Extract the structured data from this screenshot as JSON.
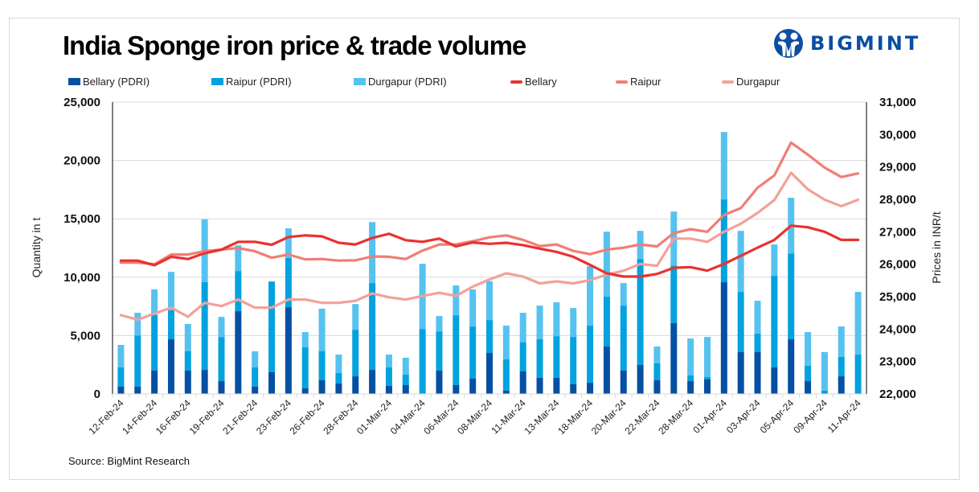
{
  "header": {
    "title": "India Sponge iron price & trade volume",
    "logo_text": "BIGMINT",
    "brand_color": "#0B4EA2"
  },
  "footer": {
    "source": "Source: BigMint Research"
  },
  "chart_data": {
    "type": "bar+line",
    "title": "India Sponge iron price & trade volume",
    "xlabel": "",
    "ylabel": "Quantity in t",
    "y2label": "Prices in INR/t",
    "ylim": [
      0,
      25000
    ],
    "y2lim": [
      22000,
      31000
    ],
    "yticks": [
      "0",
      "5,000",
      "10,000",
      "15,000",
      "20,000",
      "25,000"
    ],
    "y2ticks": [
      "22,000",
      "23,000",
      "24,000",
      "25,000",
      "26,000",
      "27,000",
      "28,000",
      "29,000",
      "30,000",
      "31,000"
    ],
    "grid": true,
    "legend_position": "top",
    "categories": [
      "12-Feb-24",
      "",
      "14-Feb-24",
      "",
      "16-Feb-24",
      "",
      "19-Feb-24",
      "",
      "21-Feb-24",
      "",
      "23-Feb-24",
      "",
      "26-Feb-24",
      "",
      "28-Feb-24",
      "",
      "01-Mar-24",
      "",
      "04-Mar-24",
      "",
      "06-Mar-24",
      "",
      "08-Mar-24",
      "",
      "11-Mar-24",
      "",
      "13-Mar-24",
      "",
      "18-Mar-24",
      "",
      "20-Mar-24",
      "",
      "22-Mar-24",
      "",
      "28-Mar-24",
      "",
      "01-Apr-24",
      "",
      "03-Apr-24",
      "",
      "05-Apr-24",
      "",
      "09-Apr-24",
      "",
      "11-Apr-24"
    ],
    "bar_series": [
      {
        "name": "Bellary (PDRI)",
        "color": "#0650A3",
        "stack": "volume",
        "values": [
          640,
          640,
          2000,
          4680,
          2000,
          2060,
          1100,
          7090,
          640,
          1860,
          7430,
          480,
          1170,
          890,
          1510,
          2060,
          690,
          760,
          0,
          2000,
          760,
          1310,
          3510,
          280,
          1930,
          1380,
          1380,
          830,
          960,
          4060,
          2000,
          2480,
          1170,
          6060,
          1100,
          1240,
          9570,
          3580,
          3580,
          2270,
          4680,
          1100,
          0,
          1510,
          0
        ]
      },
      {
        "name": "Raipur (PDRI)",
        "color": "#04A2DF",
        "stack": "volume",
        "values": [
          1630,
          4360,
          4770,
          2480,
          1650,
          7530,
          3780,
          3440,
          1630,
          7770,
          4210,
          3510,
          2480,
          900,
          3990,
          7440,
          1580,
          890,
          5570,
          3360,
          5980,
          4470,
          2820,
          2680,
          2480,
          3300,
          3570,
          4050,
          4890,
          4270,
          5570,
          9080,
          1450,
          4940,
          480,
          210,
          7090,
          5160,
          1580,
          7850,
          7360,
          1310,
          280,
          1660,
          3370
        ]
      },
      {
        "name": "Durgapur (PDRI)",
        "color": "#56C2F0",
        "stack": "volume",
        "values": [
          1930,
          1950,
          2180,
          3300,
          2340,
          5370,
          1720,
          2200,
          1380,
          0,
          2540,
          1310,
          3650,
          1580,
          2200,
          5220,
          1100,
          1450,
          5580,
          1310,
          2550,
          3170,
          3330,
          2890,
          2540,
          2890,
          2900,
          2480,
          5090,
          5570,
          1930,
          2410,
          1440,
          4620,
          3170,
          3430,
          5780,
          5230,
          2820,
          2680,
          4760,
          2890,
          3300,
          2610,
          5370
        ]
      }
    ],
    "line_series": [
      {
        "name": "Bellary",
        "color": "#E8332F",
        "axis": "right",
        "values": [
          26110,
          26110,
          25970,
          26230,
          26160,
          26340,
          26450,
          26690,
          26690,
          26600,
          26840,
          26890,
          26860,
          26660,
          26610,
          26810,
          26940,
          26740,
          26690,
          26790,
          26550,
          26670,
          26630,
          26660,
          26590,
          26480,
          26380,
          26230,
          25980,
          25720,
          25620,
          25620,
          25700,
          25890,
          25910,
          25800,
          26010,
          26260,
          26510,
          26750,
          27190,
          27140,
          27000,
          26750,
          26750
        ]
      },
      {
        "name": "Raipur",
        "color": "#F07E74",
        "axis": "right",
        "values": [
          26050,
          26050,
          26000,
          26300,
          26300,
          26400,
          26450,
          26500,
          26400,
          26200,
          26300,
          26150,
          26160,
          26110,
          26120,
          26240,
          26230,
          26160,
          26420,
          26610,
          26610,
          26710,
          26830,
          26890,
          26750,
          26560,
          26610,
          26410,
          26310,
          26450,
          26510,
          26610,
          26550,
          26960,
          27080,
          27000,
          27520,
          27730,
          28360,
          28740,
          29750,
          29380,
          28980,
          28690,
          28800
        ]
      },
      {
        "name": "Durgapur",
        "color": "#F2A19A",
        "axis": "right",
        "values": [
          24430,
          24290,
          24480,
          24660,
          24380,
          24810,
          24710,
          24910,
          24660,
          24660,
          24910,
          24910,
          24810,
          24810,
          24870,
          25100,
          24980,
          24910,
          25020,
          25120,
          25020,
          25310,
          25530,
          25720,
          25620,
          25410,
          25470,
          25410,
          25510,
          25680,
          25800,
          26010,
          25950,
          26790,
          26790,
          26690,
          27000,
          27250,
          27580,
          27980,
          28820,
          28310,
          27990,
          27790,
          27990
        ]
      }
    ]
  }
}
